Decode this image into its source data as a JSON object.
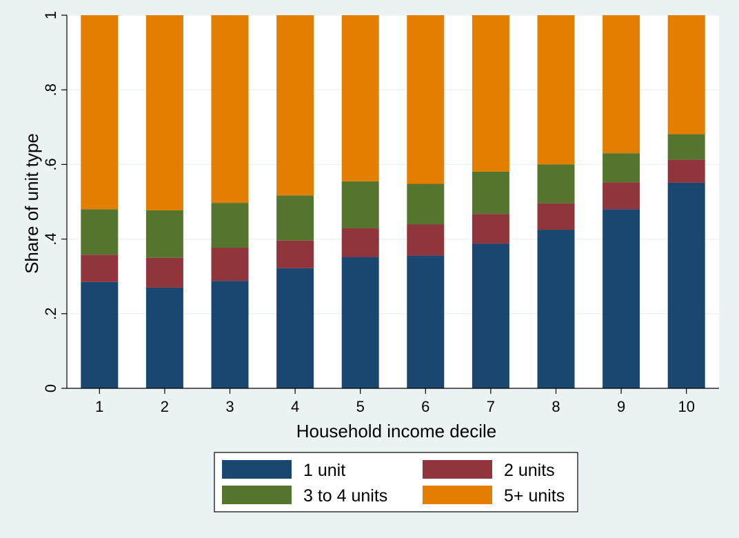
{
  "chart_data": {
    "type": "bar",
    "stacked": true,
    "title": "",
    "xlabel": "Household income decile",
    "ylabel": "Share of unit type",
    "categories": [
      "1",
      "2",
      "3",
      "4",
      "5",
      "6",
      "7",
      "8",
      "9",
      "10"
    ],
    "series": [
      {
        "name": "1 unit",
        "color": "#1a476f",
        "values": [
          0.285,
          0.27,
          0.288,
          0.322,
          0.352,
          0.356,
          0.388,
          0.425,
          0.48,
          0.551
        ]
      },
      {
        "name": "2 units",
        "color": "#90353b",
        "values": [
          0.073,
          0.08,
          0.089,
          0.074,
          0.077,
          0.083,
          0.079,
          0.071,
          0.072,
          0.062
        ]
      },
      {
        "name": "3 to 4 units",
        "color": "#55752f",
        "values": [
          0.122,
          0.127,
          0.12,
          0.121,
          0.126,
          0.109,
          0.114,
          0.104,
          0.078,
          0.068
        ]
      },
      {
        "name": "5+ units",
        "color": "#e37e00",
        "values": [
          0.52,
          0.523,
          0.503,
          0.483,
          0.445,
          0.452,
          0.419,
          0.4,
          0.37,
          0.319
        ]
      }
    ],
    "ylim": [
      0,
      1
    ],
    "yticks": [
      0,
      0.2,
      0.4,
      0.6,
      0.8,
      1
    ],
    "ytick_labels": [
      "0",
      ".2",
      ".4",
      ".6",
      ".8",
      "1"
    ],
    "grid": true,
    "legend": {
      "position": "bottom",
      "columns": 2
    }
  }
}
